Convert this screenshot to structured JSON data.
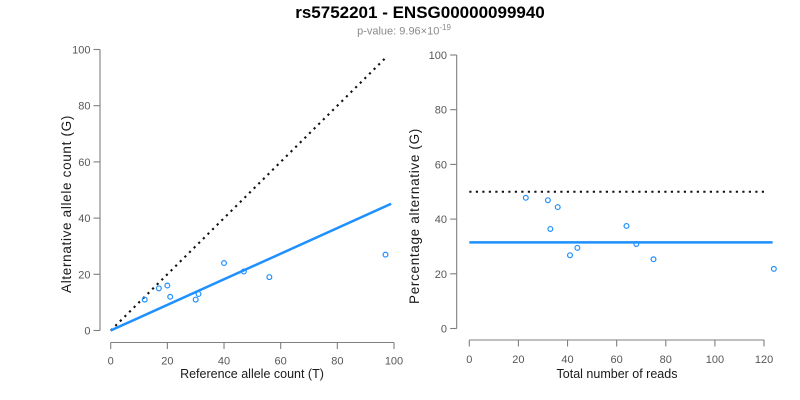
{
  "header": {
    "title": "rs5752201 - ENSG00000099940",
    "subtitle_prefix": "p-value: 9.96×10",
    "subtitle_exponent": "-19"
  },
  "colors": {
    "accent_blue": "#1E90FF",
    "line_black": "#111111",
    "axis_gray": "#7f7f7f",
    "tick_text_gray": "#575757"
  },
  "chart_data": [
    {
      "id": "ref-vs-alt",
      "type": "scatter",
      "xlabel": "Reference allele count (T)",
      "ylabel": "Alternative allele count (G)",
      "xlim": [
        0,
        100
      ],
      "ylim": [
        0,
        100
      ],
      "xticks": [
        0,
        20,
        40,
        60,
        80,
        100
      ],
      "yticks": [
        0,
        20,
        40,
        60,
        80,
        100
      ],
      "grid": false,
      "points": [
        [
          12,
          11
        ],
        [
          17,
          15
        ],
        [
          20,
          16
        ],
        [
          21,
          12
        ],
        [
          30,
          11
        ],
        [
          31,
          13
        ],
        [
          40,
          24
        ],
        [
          47,
          21
        ],
        [
          56,
          19
        ],
        [
          97,
          27
        ]
      ],
      "lines": [
        {
          "name": "identity-line",
          "style": "dotted",
          "color": "black",
          "x1": 0,
          "y1": 0,
          "x2": 97.5,
          "y2": 97.5
        },
        {
          "name": "fit-line",
          "style": "solid",
          "color": "blue",
          "x1": 0,
          "y1": 0,
          "x2": 99,
          "y2": 45.1
        }
      ]
    },
    {
      "id": "reads-vs-percentage",
      "type": "scatter",
      "xlabel": "Total number of reads",
      "ylabel": "Percentage alternative (G)",
      "xlim": [
        0,
        129
      ],
      "ylim": [
        0,
        100
      ],
      "xticks": [
        0,
        20,
        40,
        60,
        80,
        100,
        120
      ],
      "yticks": [
        0,
        20,
        40,
        60,
        80,
        100
      ],
      "grid": false,
      "points": [
        [
          23,
          47.8
        ],
        [
          32,
          46.9
        ],
        [
          36,
          44.4
        ],
        [
          33,
          36.4
        ],
        [
          41,
          26.8
        ],
        [
          44,
          29.5
        ],
        [
          64,
          37.5
        ],
        [
          68,
          30.9
        ],
        [
          75,
          25.3
        ],
        [
          124,
          21.8
        ]
      ],
      "lines": [
        {
          "name": "fifty-percent-line",
          "style": "dotted",
          "color": "black",
          "x1": 0,
          "y1": 50,
          "x2": 121,
          "y2": 50
        },
        {
          "name": "mean-percentage-line",
          "style": "solid",
          "color": "blue",
          "x1": 0,
          "y1": 31.5,
          "x2": 123.5,
          "y2": 31.5
        }
      ]
    }
  ]
}
